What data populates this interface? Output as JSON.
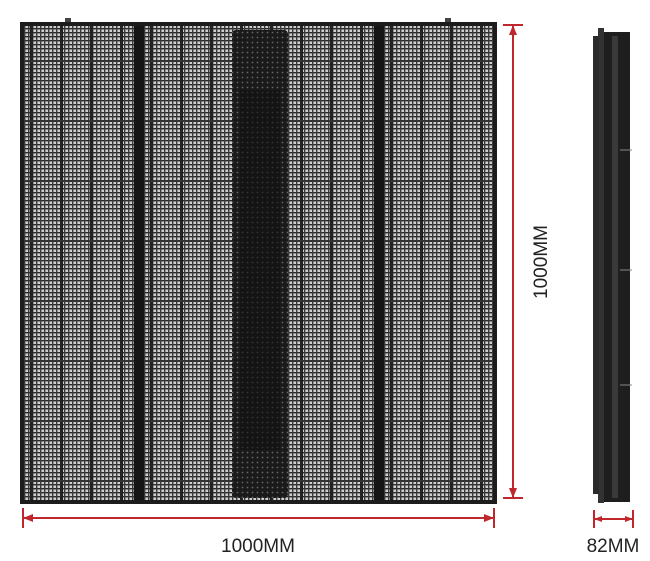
{
  "dimensions": {
    "width": "1000MM",
    "height": "1000MM",
    "depth": "82MM"
  }
}
